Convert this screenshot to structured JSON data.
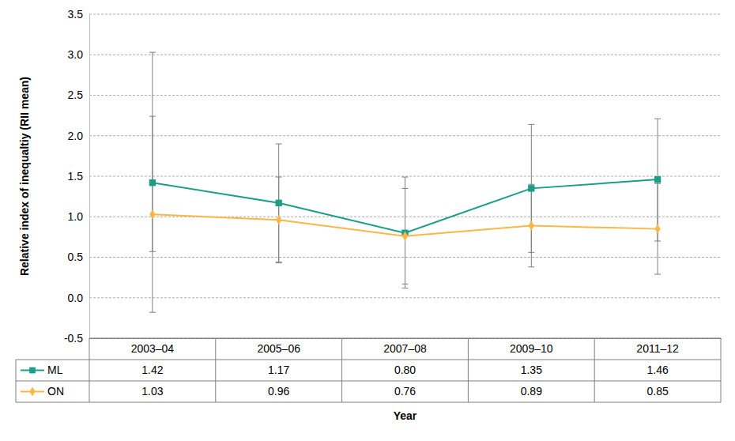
{
  "chart_data": {
    "type": "line",
    "x_label": "Year",
    "y_label": "Relative index of inequaltiy (RII mean)",
    "categories": [
      "2003–04",
      "2005–06",
      "2007–08",
      "2009–10",
      "2011–12"
    ],
    "ylim": [
      -0.5,
      3.5
    ],
    "yticks": [
      -0.5,
      {
        "value": 0,
        "label": "0.0"
      },
      0.5,
      {
        "value": 1,
        "label": "1.0"
      },
      1.5,
      {
        "value": 2,
        "label": "2.0"
      },
      2.5,
      {
        "value": 3,
        "label": "3.0"
      },
      3.5
    ],
    "grid": true,
    "series": [
      {
        "name": "ML",
        "color": "#1b9e87",
        "marker": "square",
        "line_style": "solid",
        "values": [
          1.42,
          1.17,
          0.8,
          1.35,
          1.46
        ],
        "value_labels": [
          "1.42",
          "1.17",
          "0.80",
          "1.35",
          "1.46"
        ],
        "lower": [
          0.57,
          0.44,
          0.12,
          0.56,
          0.7
        ],
        "upper": [
          3.03,
          1.9,
          1.49,
          2.14,
          2.21
        ]
      },
      {
        "name": "ON",
        "color": "#fbb645",
        "marker": "diamond",
        "line_style": "solid",
        "values": [
          1.03,
          0.96,
          0.76,
          0.89,
          0.85
        ],
        "value_labels": [
          "1.03",
          "0.96",
          "0.76",
          "0.89",
          "0.85"
        ],
        "lower": [
          -0.18,
          0.43,
          0.17,
          0.38,
          0.29
        ],
        "upper": [
          2.24,
          1.49,
          1.35,
          1.4,
          1.41
        ]
      }
    ]
  }
}
